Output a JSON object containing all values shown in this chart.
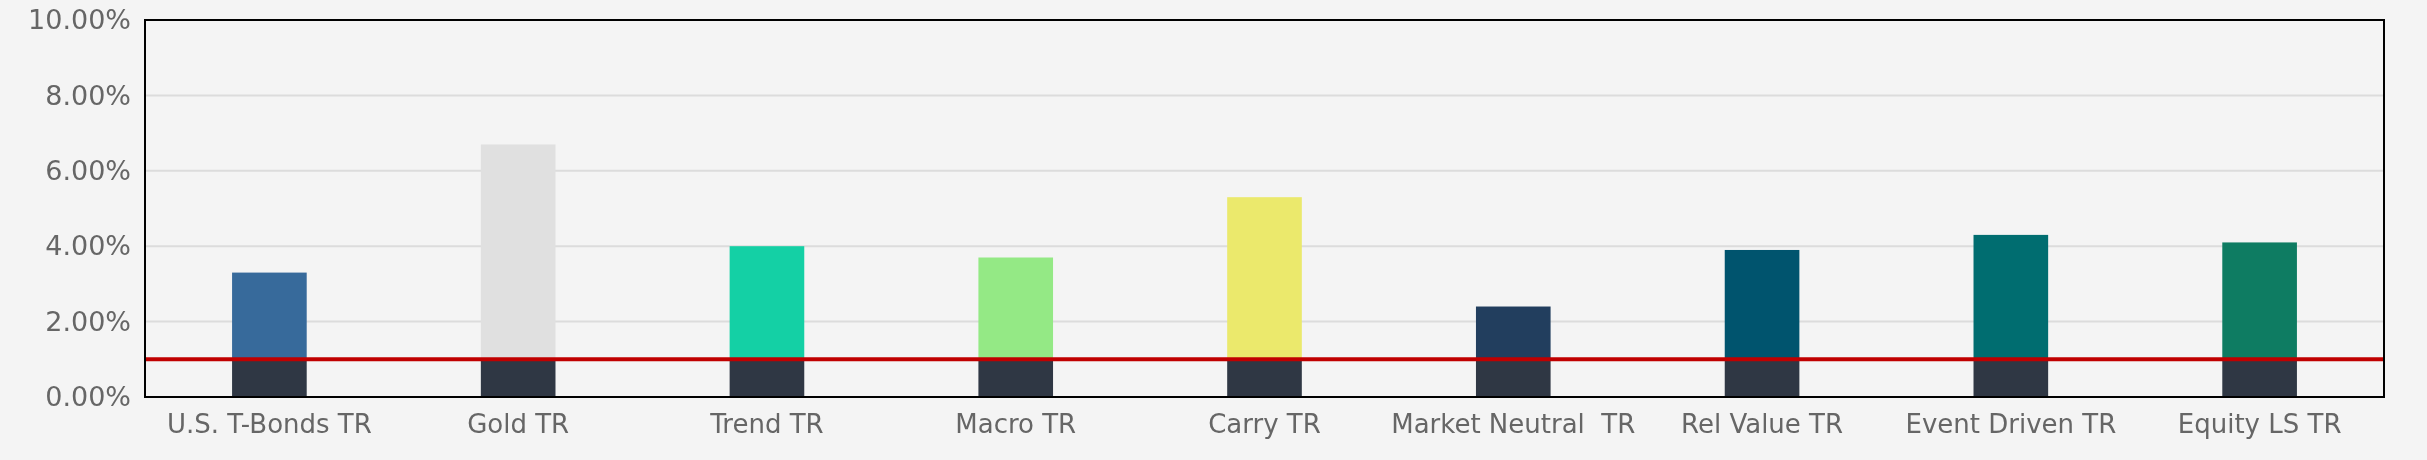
{
  "chart_data": {
    "type": "bar",
    "stacked": true,
    "categories": [
      "U.S. T-Bonds TR",
      "Gold TR",
      "Trend TR",
      "Macro TR",
      "Carry TR",
      "Market Neutral  TR",
      "Rel Value TR",
      "Event Driven TR",
      "Equity LS TR"
    ],
    "series": [
      {
        "color": "#2f3744",
        "values": [
          1.0,
          1.0,
          1.0,
          1.0,
          1.0,
          1.0,
          1.0,
          1.0,
          1.0
        ]
      },
      {
        "colors": [
          "#376a9b",
          "#e0e0e0",
          "#14d0a5",
          "#94e985",
          "#ebe96c",
          "#223e5e",
          "#00546e",
          "#006d70",
          "#0e7c62"
        ],
        "values": [
          2.3,
          5.7,
          3.0,
          2.7,
          4.3,
          1.4,
          2.9,
          3.3,
          3.1
        ]
      }
    ],
    "ylim": [
      0,
      10
    ],
    "yticks": [
      {
        "value": 0,
        "label": "0.00%"
      },
      {
        "value": 2,
        "label": "2.00%"
      },
      {
        "value": 4,
        "label": "4.00%"
      },
      {
        "value": 6,
        "label": "6.00%"
      },
      {
        "value": 8,
        "label": "8.00%"
      },
      {
        "value": 10,
        "label": "10.00%"
      }
    ],
    "grid": "y",
    "ref_lines": [
      {
        "axis": "y",
        "value": 1.0,
        "color": "#c00000"
      }
    ]
  }
}
